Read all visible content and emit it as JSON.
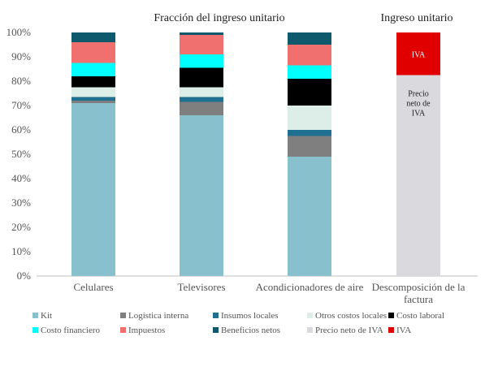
{
  "chart_data": {
    "type": "bar",
    "stacked": true,
    "ylim": [
      0,
      100
    ],
    "y_tick_labels": [
      "0%",
      "10%",
      "20%",
      "30%",
      "40%",
      "50%",
      "60%",
      "70%",
      "80%",
      "90%",
      "100%"
    ],
    "titles": [
      "Fracción del ingreso unitario",
      "Ingreso unitario"
    ],
    "categories": [
      "Celulares",
      "Televisores",
      "Acondicionadores de aire",
      "Descomposición de la factura"
    ],
    "grid": false,
    "legend_position": "bottom",
    "series": [
      {
        "name": "Kit",
        "color": "#88C1CD",
        "values": [
          71,
          66,
          49,
          0
        ]
      },
      {
        "name": "Logística interna",
        "color": "#7F7F7F",
        "values": [
          1,
          5.5,
          8.5,
          0
        ]
      },
      {
        "name": "Insumos locales",
        "color": "#1F6F91",
        "values": [
          1.5,
          2,
          2.5,
          0
        ]
      },
      {
        "name": "Otros costos locales",
        "color": "#DDEEE9",
        "values": [
          4,
          4,
          10,
          0
        ]
      },
      {
        "name": "Costo laboral",
        "color": "#000000",
        "values": [
          4.5,
          8,
          11,
          0
        ]
      },
      {
        "name": "Costo financiero",
        "color": "#00FFFF",
        "values": [
          5.5,
          5.5,
          5.5,
          0
        ]
      },
      {
        "name": "Impuestos",
        "color": "#F07070",
        "values": [
          8.5,
          8,
          8.5,
          0
        ]
      },
      {
        "name": "Beneficios netos",
        "color": "#0E5A6C",
        "values": [
          4,
          1,
          5,
          0
        ]
      },
      {
        "name": "Precio neto de IVA",
        "color": "#D9D9DE",
        "values": [
          0,
          0,
          0,
          82.5
        ]
      },
      {
        "name": "IVA",
        "color": "#E00000",
        "values": [
          0,
          0,
          0,
          17.5
        ]
      }
    ],
    "annotations": [
      {
        "text": "IVA",
        "series": "IVA",
        "category": "Descomposición de la factura",
        "color": "#FFFFFF"
      },
      {
        "text": "Precio neto de IVA",
        "series": "Precio neto de IVA",
        "category": "Descomposición de la factura",
        "color": "#222222"
      }
    ]
  }
}
